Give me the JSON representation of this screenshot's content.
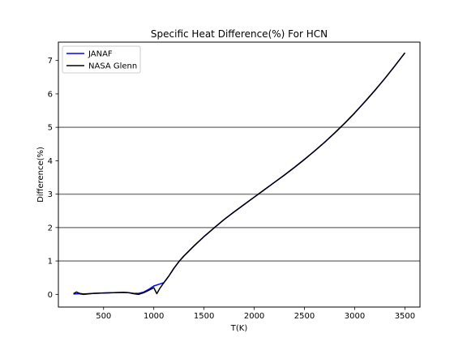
{
  "chart_data": {
    "type": "line",
    "title": "Specific Heat Difference(%) For HCN",
    "xlabel": "T(K)",
    "ylabel": "Difference(%)",
    "xlim": [
      50,
      3650
    ],
    "ylim": [
      -0.38,
      7.55
    ],
    "xticks": [
      500,
      1000,
      1500,
      2000,
      2500,
      3000,
      3500
    ],
    "yticks": [
      0,
      1,
      2,
      3,
      4,
      5,
      6,
      7
    ],
    "hlines": [
      1,
      2,
      3,
      5
    ],
    "grid": false,
    "legend_position": "top-left",
    "series": [
      {
        "name": "JANAF",
        "color": "#0000ff",
        "x": [
          200,
          250,
          300,
          400,
          500,
          600,
          700,
          750,
          800,
          850,
          900,
          950,
          1000,
          1050,
          1100,
          1150,
          1200,
          1250,
          1300,
          1400,
          1500,
          1600,
          1700,
          1800,
          1900,
          2000,
          2100,
          2200,
          2300,
          2400,
          2500,
          2600,
          2700,
          2800,
          2900,
          3000,
          3100,
          3200,
          3300,
          3400,
          3500
        ],
        "y": [
          0.01,
          0.02,
          0.0,
          0.03,
          0.04,
          0.05,
          0.06,
          0.05,
          0.03,
          0.03,
          0.07,
          0.15,
          0.25,
          0.3,
          0.35,
          0.55,
          0.78,
          0.98,
          1.15,
          1.45,
          1.73,
          1.99,
          2.24,
          2.47,
          2.69,
          2.91,
          3.13,
          3.35,
          3.57,
          3.8,
          4.04,
          4.29,
          4.55,
          4.83,
          5.12,
          5.43,
          5.76,
          6.1,
          6.46,
          6.84,
          7.23
        ]
      },
      {
        "name": "NASA Glenn",
        "color": "#000000",
        "x": [
          200,
          230,
          260,
          300,
          400,
          500,
          600,
          700,
          750,
          800,
          850,
          900,
          950,
          1000,
          1030,
          1060,
          1100,
          1150,
          1200,
          1250,
          1300,
          1400,
          1500,
          1600,
          1700,
          1800,
          1900,
          2000,
          2100,
          2200,
          2300,
          2400,
          2500,
          2600,
          2700,
          2800,
          2900,
          3000,
          3100,
          3200,
          3300,
          3400,
          3500
        ],
        "y": [
          0.02,
          0.07,
          0.03,
          0.01,
          0.03,
          0.04,
          0.05,
          0.06,
          0.05,
          0.02,
          0.0,
          0.05,
          0.12,
          0.2,
          0.02,
          0.18,
          0.35,
          0.55,
          0.78,
          0.98,
          1.15,
          1.45,
          1.73,
          1.99,
          2.24,
          2.47,
          2.69,
          2.91,
          3.13,
          3.35,
          3.57,
          3.8,
          4.04,
          4.29,
          4.55,
          4.83,
          5.12,
          5.43,
          5.76,
          6.1,
          6.46,
          6.84,
          7.23
        ]
      }
    ]
  }
}
